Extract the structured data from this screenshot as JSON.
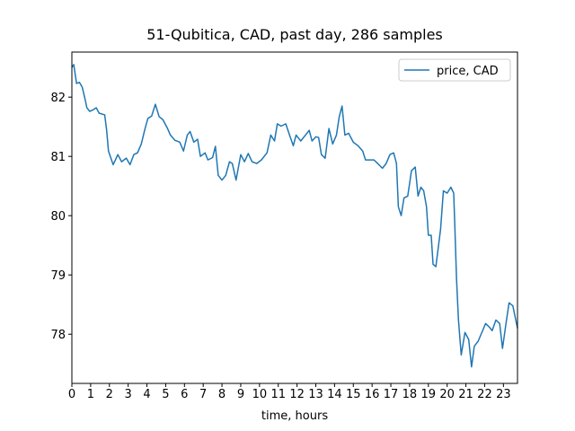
{
  "chart_data": {
    "type": "line",
    "title": "51-Qubitica, CAD, past day, 286 samples",
    "xlabel": "time, hours",
    "x": [
      0,
      0.1,
      0.25,
      0.4,
      0.55,
      0.7,
      0.8,
      0.95,
      1.15,
      1.3,
      1.45,
      1.75,
      1.85,
      1.95,
      2.2,
      2.45,
      2.65,
      2.9,
      3.1,
      3.3,
      3.5,
      3.7,
      3.9,
      4.05,
      4.25,
      4.45,
      4.65,
      4.85,
      5.1,
      5.25,
      5.5,
      5.75,
      5.95,
      6.15,
      6.3,
      6.5,
      6.7,
      6.85,
      7.1,
      7.25,
      7.5,
      7.65,
      7.8,
      8.0,
      8.2,
      8.4,
      8.55,
      8.75,
      9.0,
      9.2,
      9.4,
      9.6,
      9.85,
      10.1,
      10.4,
      10.6,
      10.8,
      10.95,
      11.15,
      11.4,
      11.6,
      11.8,
      11.95,
      12.2,
      12.45,
      12.65,
      12.8,
      13.0,
      13.15,
      13.3,
      13.5,
      13.7,
      13.9,
      14.1,
      14.25,
      14.4,
      14.55,
      14.75,
      15.0,
      15.25,
      15.5,
      15.65,
      15.9,
      16.1,
      16.3,
      16.55,
      16.75,
      16.95,
      17.15,
      17.3,
      17.4,
      17.55,
      17.7,
      17.9,
      18.1,
      18.3,
      18.45,
      18.6,
      18.75,
      18.9,
      19.0,
      19.15,
      19.25,
      19.4,
      19.65,
      19.8,
      20.0,
      20.2,
      20.35,
      20.4,
      20.5,
      20.6,
      20.75,
      20.95,
      21.15,
      21.3,
      21.45,
      21.65,
      21.85,
      22.05,
      22.25,
      22.4,
      22.6,
      22.8,
      22.95,
      23.15,
      23.3,
      23.5,
      23.75
    ],
    "series": [
      {
        "name": "price, CAD",
        "color": "#1f77b4",
        "values": [
          82.5,
          82.55,
          82.23,
          82.25,
          82.17,
          81.97,
          81.82,
          81.76,
          81.79,
          81.82,
          81.73,
          81.7,
          81.45,
          81.09,
          80.86,
          81.03,
          80.91,
          80.97,
          80.86,
          81.03,
          81.06,
          81.21,
          81.47,
          81.64,
          81.68,
          81.88,
          81.67,
          81.62,
          81.47,
          81.36,
          81.27,
          81.24,
          81.09,
          81.36,
          81.42,
          81.24,
          81.29,
          81.0,
          81.06,
          80.94,
          80.98,
          81.17,
          80.68,
          80.6,
          80.68,
          80.91,
          80.88,
          80.6,
          81.03,
          80.91,
          81.05,
          80.91,
          80.88,
          80.94,
          81.06,
          81.36,
          81.26,
          81.55,
          81.51,
          81.55,
          81.36,
          81.18,
          81.36,
          81.26,
          81.36,
          81.44,
          81.26,
          81.33,
          81.32,
          81.03,
          80.97,
          81.47,
          81.21,
          81.36,
          81.67,
          81.85,
          81.36,
          81.39,
          81.24,
          81.18,
          81.09,
          80.94,
          80.94,
          80.94,
          80.88,
          80.8,
          80.88,
          81.03,
          81.06,
          80.88,
          80.15,
          80.0,
          80.3,
          80.33,
          80.76,
          80.82,
          80.33,
          80.48,
          80.42,
          80.15,
          79.67,
          79.67,
          79.18,
          79.14,
          79.77,
          80.42,
          80.38,
          80.48,
          80.38,
          79.92,
          78.94,
          78.26,
          77.65,
          78.03,
          77.91,
          77.45,
          77.8,
          77.88,
          78.03,
          78.18,
          78.12,
          78.06,
          78.24,
          78.18,
          77.76,
          78.21,
          78.53,
          78.48,
          78.1
        ]
      }
    ],
    "xlim": [
      0,
      23.75
    ],
    "ylim": [
      77.17,
      82.76
    ],
    "xticks": [
      0,
      1,
      2,
      3,
      4,
      5,
      6,
      7,
      8,
      9,
      10,
      11,
      12,
      13,
      14,
      15,
      16,
      17,
      18,
      19,
      20,
      21,
      22,
      23
    ],
    "yticks": [
      78,
      79,
      80,
      81,
      82
    ],
    "legend": "upper right"
  }
}
